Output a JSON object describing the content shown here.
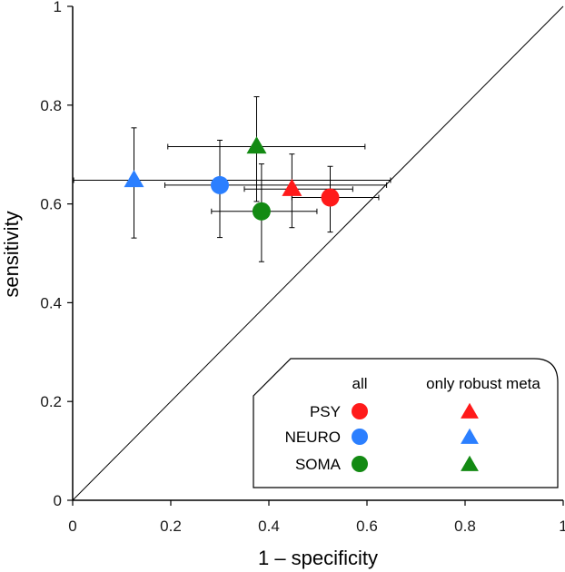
{
  "chart_data": {
    "type": "scatter",
    "xlabel": "1 – specificity",
    "ylabel": "sensitivity",
    "xlim": [
      0,
      1
    ],
    "ylim": [
      0,
      1
    ],
    "x_ticks": [
      "0",
      "0.2",
      "0.4",
      "0.6",
      "0.8",
      "1"
    ],
    "y_ticks": [
      "0",
      "0.2",
      "0.4",
      "0.6",
      "0.8",
      "1"
    ],
    "grid": false,
    "reference_line": "diagonal",
    "legend": {
      "placement": "bottom-right",
      "col_all": "all",
      "col_robust": "only robust meta",
      "rows": [
        {
          "label": "PSY",
          "color": "#ff1a1a"
        },
        {
          "label": "NEURO",
          "color": "#2b7fff"
        },
        {
          "label": "SOMA",
          "color": "#138a13"
        }
      ]
    },
    "series": [
      {
        "group": "PSY",
        "subset": "all",
        "marker": "circle",
        "color": "#ff1a1a",
        "x": 0.525,
        "y": 0.613,
        "x_err": [
          0.447,
          0.624
        ],
        "y_err": [
          0.543,
          0.676
        ]
      },
      {
        "group": "NEURO",
        "subset": "all",
        "marker": "circle",
        "color": "#2b7fff",
        "x": 0.3,
        "y": 0.638,
        "x_err": [
          0.188,
          0.64
        ],
        "y_err": [
          0.532,
          0.729
        ]
      },
      {
        "group": "SOMA",
        "subset": "all",
        "marker": "circle",
        "color": "#138a13",
        "x": 0.385,
        "y": 0.585,
        "x_err": [
          0.283,
          0.498
        ],
        "y_err": [
          0.483,
          0.681
        ]
      },
      {
        "group": "PSY",
        "subset": "only robust meta",
        "marker": "triangle",
        "color": "#ff1a1a",
        "x": 0.447,
        "y": 0.63,
        "x_err": [
          0.35,
          0.571
        ],
        "y_err": [
          0.552,
          0.701
        ]
      },
      {
        "group": "NEURO",
        "subset": "only robust meta",
        "marker": "triangle",
        "color": "#2b7fff",
        "x": 0.125,
        "y": 0.648,
        "x_err": [
          0.002,
          0.648
        ],
        "y_err": [
          0.531,
          0.754
        ]
      },
      {
        "group": "SOMA",
        "subset": "only robust meta",
        "marker": "triangle",
        "color": "#138a13",
        "x": 0.375,
        "y": 0.716,
        "x_err": [
          0.194,
          0.596
        ],
        "y_err": [
          0.605,
          0.817
        ]
      }
    ]
  }
}
